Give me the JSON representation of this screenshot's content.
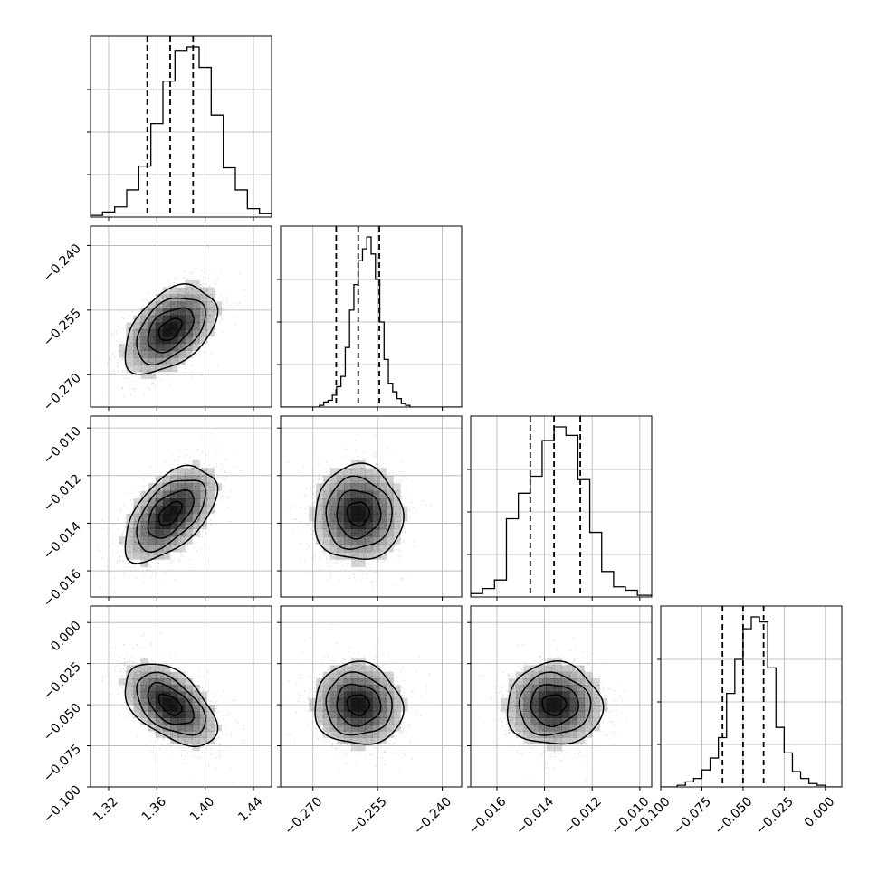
{
  "chart_data": {
    "type": "corner",
    "grid": true,
    "parameters": [
      {
        "range": [
          1.305,
          1.455
        ],
        "ticks": [
          1.32,
          1.36,
          1.4,
          1.44
        ],
        "tick_labels": [
          "1.32",
          "1.36",
          "1.40",
          "1.44"
        ],
        "quantiles": [
          1.352,
          1.371,
          1.39
        ],
        "center": 1.371,
        "sigma": 0.019,
        "hist_bins": [
          1.305,
          1.315,
          1.325,
          1.335,
          1.345,
          1.355,
          1.365,
          1.375,
          1.385,
          1.395,
          1.405,
          1.415,
          1.425,
          1.435,
          1.445,
          1.455
        ],
        "hist_counts": [
          0.01,
          0.03,
          0.06,
          0.16,
          0.3,
          0.55,
          0.8,
          0.98,
          1.0,
          0.88,
          0.6,
          0.29,
          0.16,
          0.05,
          0.02
        ]
      },
      {
        "range": [
          -0.2775,
          -0.2355
        ],
        "ticks": [
          -0.27,
          -0.255,
          -0.24
        ],
        "tick_labels": [
          "−0.270",
          "−0.255",
          "−0.240"
        ],
        "quantiles": [
          -0.2646,
          -0.2595,
          -0.2546
        ],
        "center": -0.2595,
        "sigma": 0.0051,
        "hist_bins": [
          -0.2775,
          -0.2765,
          -0.2755,
          -0.2745,
          -0.2735,
          -0.2725,
          -0.2715,
          -0.2705,
          -0.2695,
          -0.2685,
          -0.2675,
          -0.2665,
          -0.2655,
          -0.2645,
          -0.2635,
          -0.2625,
          -0.2615,
          -0.2605,
          -0.2595,
          -0.2585,
          -0.2575,
          -0.2565,
          -0.2555,
          -0.2545,
          -0.2535,
          -0.2525,
          -0.2515,
          -0.2505,
          -0.2495,
          -0.2485,
          -0.2475,
          -0.2465,
          -0.2455,
          -0.2445,
          -0.2435,
          -0.2425,
          -0.2415,
          -0.2405,
          -0.2395,
          -0.2385,
          -0.2375,
          -0.2365,
          -0.2355
        ],
        "hist_counts": [
          0,
          0,
          0,
          0,
          0,
          0,
          0,
          0,
          0,
          0.01,
          0.03,
          0.04,
          0.07,
          0.12,
          0.18,
          0.35,
          0.57,
          0.72,
          0.86,
          0.93,
          1.0,
          0.9,
          0.75,
          0.5,
          0.28,
          0.14,
          0.09,
          0.05,
          0.02,
          0.01,
          0,
          0,
          0,
          0,
          0,
          0,
          0,
          0,
          0,
          0,
          0,
          0
        ]
      },
      {
        "range": [
          -0.0171,
          -0.0095
        ],
        "ticks": [
          -0.016,
          -0.014,
          -0.012,
          -0.01
        ],
        "tick_labels": [
          "−0.016",
          "−0.014",
          "−0.012",
          "−0.010"
        ],
        "quantiles": [
          -0.0146,
          -0.0136,
          -0.0125
        ],
        "center": -0.0136,
        "sigma": 0.001,
        "hist_bins": [
          -0.0171,
          -0.0166,
          -0.0161,
          -0.0156,
          -0.0151,
          -0.0146,
          -0.0141,
          -0.0136,
          -0.0131,
          -0.0126,
          -0.0121,
          -0.0116,
          -0.0111,
          -0.0106,
          -0.0101,
          -0.0095
        ],
        "hist_counts": [
          0.02,
          0.05,
          0.1,
          0.46,
          0.61,
          0.71,
          0.92,
          1.0,
          0.95,
          0.69,
          0.38,
          0.15,
          0.06,
          0.04,
          0.01
        ]
      },
      {
        "range": [
          -0.1,
          0.01
        ],
        "ticks": [
          -0.1,
          -0.075,
          -0.05,
          -0.025,
          0.0
        ],
        "tick_labels": [
          "−0.100",
          "−0.075",
          "−0.050",
          "−0.025",
          "0.000"
        ],
        "quantiles": [
          -0.0625,
          -0.05,
          -0.0375
        ],
        "center": -0.05,
        "sigma": 0.0125,
        "hist_bins": [
          -0.1,
          -0.095,
          -0.09,
          -0.085,
          -0.08,
          -0.075,
          -0.07,
          -0.065,
          -0.06,
          -0.055,
          -0.05,
          -0.045,
          -0.04,
          -0.035,
          -0.03,
          -0.025,
          -0.02,
          -0.015,
          -0.01,
          -0.005,
          0.0,
          0.005,
          0.01
        ],
        "hist_counts": [
          0,
          0,
          0.01,
          0.03,
          0.05,
          0.1,
          0.17,
          0.29,
          0.55,
          0.75,
          0.93,
          1.0,
          0.97,
          0.7,
          0.35,
          0.2,
          0.09,
          0.05,
          0.02,
          0.01,
          0,
          0
        ]
      }
    ],
    "correlations": [
      [
        1.0,
        0.45,
        0.55,
        -0.5
      ],
      [
        0.45,
        1.0,
        0.0,
        -0.05
      ],
      [
        0.55,
        0.0,
        1.0,
        0.0
      ],
      [
        -0.5,
        -0.05,
        0.0,
        1.0
      ]
    ],
    "contour_sigma_levels": [
      0.5,
      1.0,
      1.5,
      2.0
    ],
    "colors": {
      "line": "#000000",
      "grid": "#b0b0b0",
      "points": "#9a9a9a",
      "density": "#000000"
    }
  }
}
